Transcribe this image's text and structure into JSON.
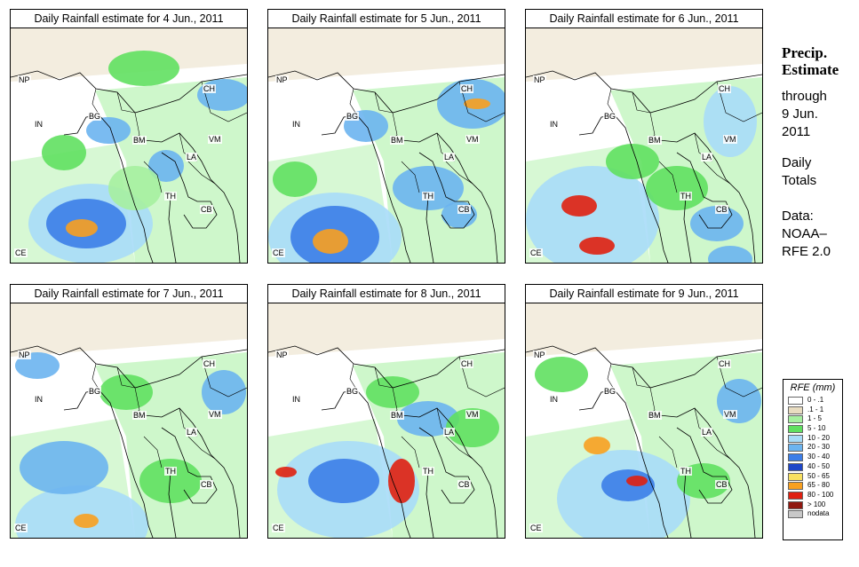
{
  "panels": [
    {
      "title": "Daily Rainfall estimate for  4 Jun., 2011"
    },
    {
      "title": "Daily Rainfall estimate for  5 Jun., 2011"
    },
    {
      "title": "Daily Rainfall estimate for  6 Jun., 2011"
    },
    {
      "title": "Daily Rainfall estimate for  7 Jun., 2011"
    },
    {
      "title": "Daily Rainfall estimate for  8 Jun., 2011"
    },
    {
      "title": "Daily Rainfall estimate for  9 Jun., 2011"
    }
  ],
  "country_labels": [
    "NP",
    "CH",
    "IN",
    "BG",
    "BM",
    "VM",
    "LA",
    "TH",
    "CB",
    "CE"
  ],
  "side": {
    "heading1": "Precip.",
    "heading2": "Estimate",
    "line1": "through",
    "line2": "9 Jun.",
    "line3": "2011",
    "line4": "Daily",
    "line5": "Totals",
    "line6": "Data:",
    "line7": "NOAA–",
    "line8": "RFE 2.0"
  },
  "legend": {
    "title": "RFE (mm)",
    "items": [
      {
        "label": "0 - .1",
        "color": "#ffffff"
      },
      {
        "label": ".1 - 1",
        "color": "#e8dcc0"
      },
      {
        "label": "1 - 5",
        "color": "#a6f0a0"
      },
      {
        "label": "5 - 10",
        "color": "#60e060"
      },
      {
        "label": "10 - 20",
        "color": "#a8dcf8"
      },
      {
        "label": "20 - 30",
        "color": "#6cb4f0"
      },
      {
        "label": "30 - 40",
        "color": "#3c7ee8"
      },
      {
        "label": "40 - 50",
        "color": "#1e46c8"
      },
      {
        "label": "50 - 65",
        "color": "#f8e060"
      },
      {
        "label": "65 - 80",
        "color": "#f8a020"
      },
      {
        "label": "80 - 100",
        "color": "#e02010"
      },
      {
        "label": "> 100",
        "color": "#901810"
      },
      {
        "label": "nodata",
        "color": "#c8c8c8"
      }
    ]
  }
}
